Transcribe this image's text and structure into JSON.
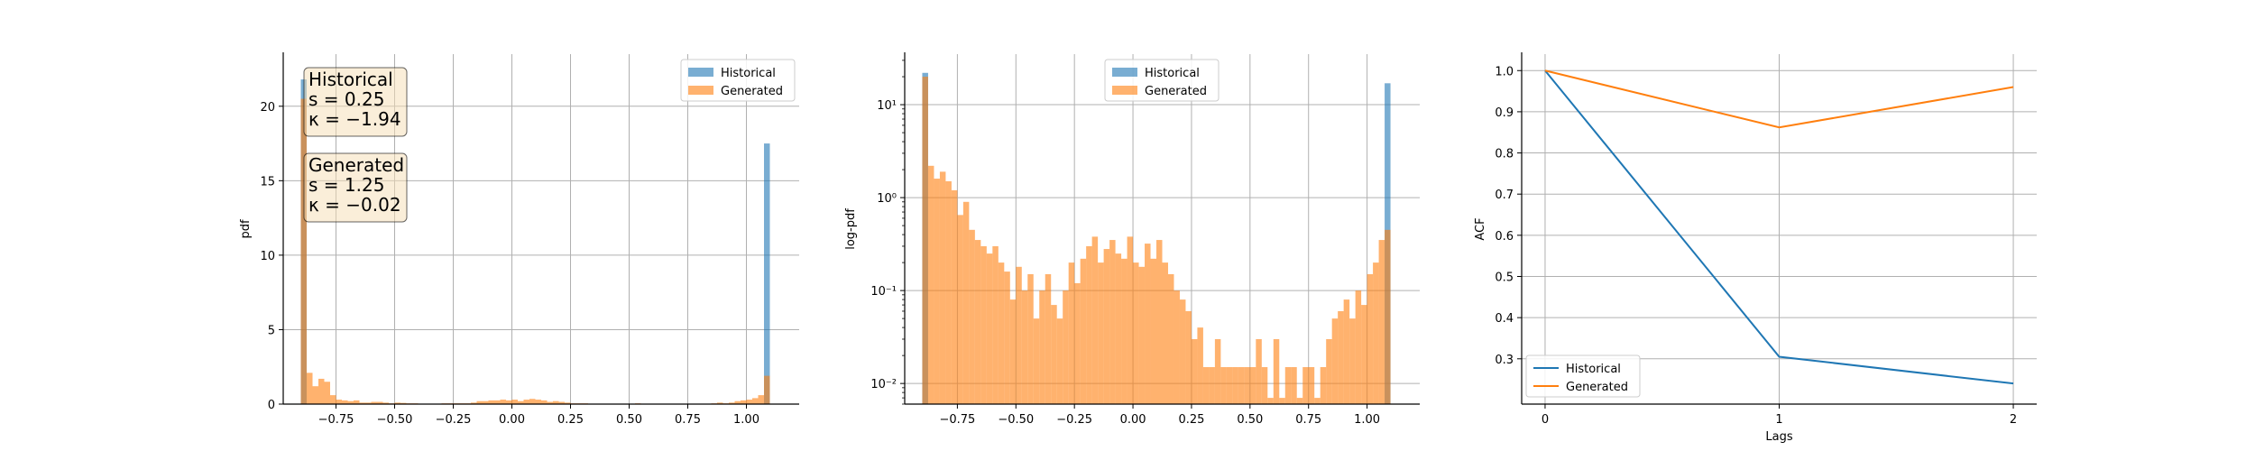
{
  "colors": {
    "historical": "#1f77b4",
    "generated": "#ff7f0e",
    "grid": "#b0b0b0",
    "box_fill": "#f5deb3"
  },
  "chart_data": [
    {
      "type": "histogram",
      "ylabel": "pdf",
      "xlim": [
        -0.975,
        1.225
      ],
      "ylim": [
        0,
        23.5
      ],
      "yscale": "linear",
      "x_ticks": [
        -0.75,
        -0.5,
        -0.25,
        0.0,
        0.25,
        0.5,
        0.75,
        1.0
      ],
      "x_tick_labels": [
        "−0.75",
        "−0.50",
        "−0.25",
        "0.00",
        "0.25",
        "0.50",
        "0.75",
        "1.00"
      ],
      "y_ticks": [
        0,
        5,
        10,
        15,
        20
      ],
      "y_tick_labels": [
        "0",
        "5",
        "10",
        "15",
        "20"
      ],
      "grid": true,
      "legend_position": "top-right",
      "legend": [
        {
          "label": "Historical",
          "series": "historical"
        },
        {
          "label": "Generated",
          "series": "generated"
        }
      ],
      "bins": {
        "start": -0.9,
        "width": 0.025,
        "count": 80
      },
      "series": [
        {
          "name": "Historical",
          "values": [
            21.8,
            0,
            0,
            0,
            0,
            0,
            0,
            0,
            0,
            0,
            0,
            0,
            0,
            0,
            0,
            0,
            0,
            0,
            0,
            0,
            0,
            0,
            0,
            0,
            0,
            0,
            0,
            0,
            0,
            0,
            0,
            0,
            0,
            0,
            0,
            0,
            0,
            0,
            0,
            0,
            0,
            0,
            0,
            0,
            0,
            0,
            0,
            0,
            0,
            0,
            0,
            0,
            0,
            0,
            0,
            0,
            0,
            0,
            0,
            0,
            0,
            0,
            0,
            0,
            0,
            0,
            0,
            0,
            0,
            0,
            0,
            0,
            0,
            0,
            0,
            0,
            0,
            0,
            0,
            17.5
          ]
        },
        {
          "name": "Generated",
          "values": [
            20.5,
            2.1,
            1.2,
            1.7,
            1.5,
            0.6,
            0.3,
            0.25,
            0.2,
            0.25,
            0.1,
            0.1,
            0.15,
            0.15,
            0.1,
            0.05,
            0.1,
            0.08,
            0.05,
            0.05,
            0.03,
            0.03,
            0.02,
            0.02,
            0.05,
            0.05,
            0.05,
            0.05,
            0.05,
            0.1,
            0.2,
            0.2,
            0.25,
            0.25,
            0.3,
            0.25,
            0.3,
            0.2,
            0.3,
            0.35,
            0.3,
            0.25,
            0.15,
            0.2,
            0.15,
            0.1,
            0.05,
            0.05,
            0.05,
            0.02,
            0.02,
            0,
            0.02,
            0,
            0.02,
            0,
            0.02,
            0.05,
            0.02,
            0,
            0.02,
            0,
            0.02,
            0.02,
            0,
            0.02,
            0,
            0.02,
            0,
            0.02,
            0.05,
            0.1,
            0.05,
            0.1,
            0.2,
            0.25,
            0.3,
            0.4,
            0.6,
            1.9
          ]
        }
      ],
      "annotations": [
        {
          "lines": [
            "Historical",
            "s = 0.25",
            "κ = −1.94"
          ]
        },
        {
          "lines": [
            "Generated",
            "s = 1.25",
            "κ = −0.02"
          ]
        }
      ]
    },
    {
      "type": "histogram",
      "ylabel": "log-pdf",
      "xlim": [
        -0.975,
        1.225
      ],
      "ylim": [
        0.006,
        35
      ],
      "yscale": "log",
      "x_ticks": [
        -0.75,
        -0.5,
        -0.25,
        0.0,
        0.25,
        0.5,
        0.75,
        1.0
      ],
      "x_tick_labels": [
        "−0.75",
        "−0.50",
        "−0.25",
        "0.00",
        "0.25",
        "0.50",
        "0.75",
        "1.00"
      ],
      "y_ticks": [
        0.01,
        0.1,
        1,
        10
      ],
      "y_tick_labels": [
        "10⁻²",
        "10⁻¹",
        "10⁰",
        "10¹"
      ],
      "grid": true,
      "legend_position": "top-center",
      "legend": [
        {
          "label": "Historical",
          "series": "historical"
        },
        {
          "label": "Generated",
          "series": "generated"
        }
      ],
      "bins": {
        "start": -0.9,
        "width": 0.025,
        "count": 80
      },
      "series": [
        {
          "name": "Historical",
          "values": [
            22,
            0,
            0,
            0,
            0,
            0,
            0,
            0,
            0,
            0,
            0,
            0,
            0,
            0,
            0,
            0,
            0,
            0,
            0,
            0,
            0,
            0,
            0,
            0,
            0,
            0,
            0,
            0,
            0,
            0,
            0,
            0,
            0,
            0,
            0,
            0,
            0,
            0,
            0,
            0,
            0,
            0,
            0,
            0,
            0,
            0,
            0,
            0,
            0,
            0,
            0,
            0,
            0,
            0,
            0,
            0,
            0,
            0,
            0,
            0,
            0,
            0,
            0,
            0,
            0,
            0,
            0,
            0,
            0,
            0,
            0,
            0,
            0,
            0,
            0,
            0,
            0,
            0,
            0,
            17
          ]
        },
        {
          "name": "Generated",
          "values": [
            20,
            2.2,
            1.6,
            1.9,
            1.5,
            1.2,
            0.65,
            0.9,
            0.45,
            0.35,
            0.3,
            0.25,
            0.3,
            0.2,
            0.16,
            0.08,
            0.18,
            0.1,
            0.15,
            0.05,
            0.1,
            0.15,
            0.07,
            0.05,
            0.1,
            0.2,
            0.12,
            0.22,
            0.3,
            0.38,
            0.2,
            0.28,
            0.35,
            0.25,
            0.22,
            0.38,
            0.2,
            0.18,
            0.32,
            0.22,
            0.35,
            0.2,
            0.15,
            0.1,
            0.08,
            0.06,
            0.03,
            0.04,
            0.015,
            0.015,
            0.03,
            0.015,
            0.015,
            0.015,
            0.015,
            0.015,
            0.015,
            0.03,
            0.015,
            0.007,
            0.03,
            0.007,
            0.015,
            0.015,
            0.007,
            0.015,
            0.015,
            0.007,
            0.015,
            0.03,
            0.05,
            0.06,
            0.08,
            0.05,
            0.1,
            0.07,
            0.15,
            0.2,
            0.35,
            0.45
          ]
        }
      ]
    },
    {
      "type": "line",
      "xlabel": "Lags",
      "ylabel": "ACF",
      "xlim": [
        -0.1,
        2.1
      ],
      "ylim": [
        0.19,
        1.04
      ],
      "x_ticks": [
        0,
        1,
        2
      ],
      "x_tick_labels": [
        "0",
        "1",
        "2"
      ],
      "y_ticks": [
        0.3,
        0.4,
        0.5,
        0.6,
        0.7,
        0.8,
        0.9,
        1.0
      ],
      "y_tick_labels": [
        "0.3",
        "0.4",
        "0.5",
        "0.6",
        "0.7",
        "0.8",
        "0.9",
        "1.0"
      ],
      "grid": true,
      "legend_position": "bottom-left",
      "x": [
        0,
        1,
        2
      ],
      "series": [
        {
          "name": "Historical",
          "values": [
            1.0,
            0.305,
            0.24
          ]
        },
        {
          "name": "Generated",
          "values": [
            1.0,
            0.862,
            0.96
          ]
        }
      ]
    }
  ]
}
